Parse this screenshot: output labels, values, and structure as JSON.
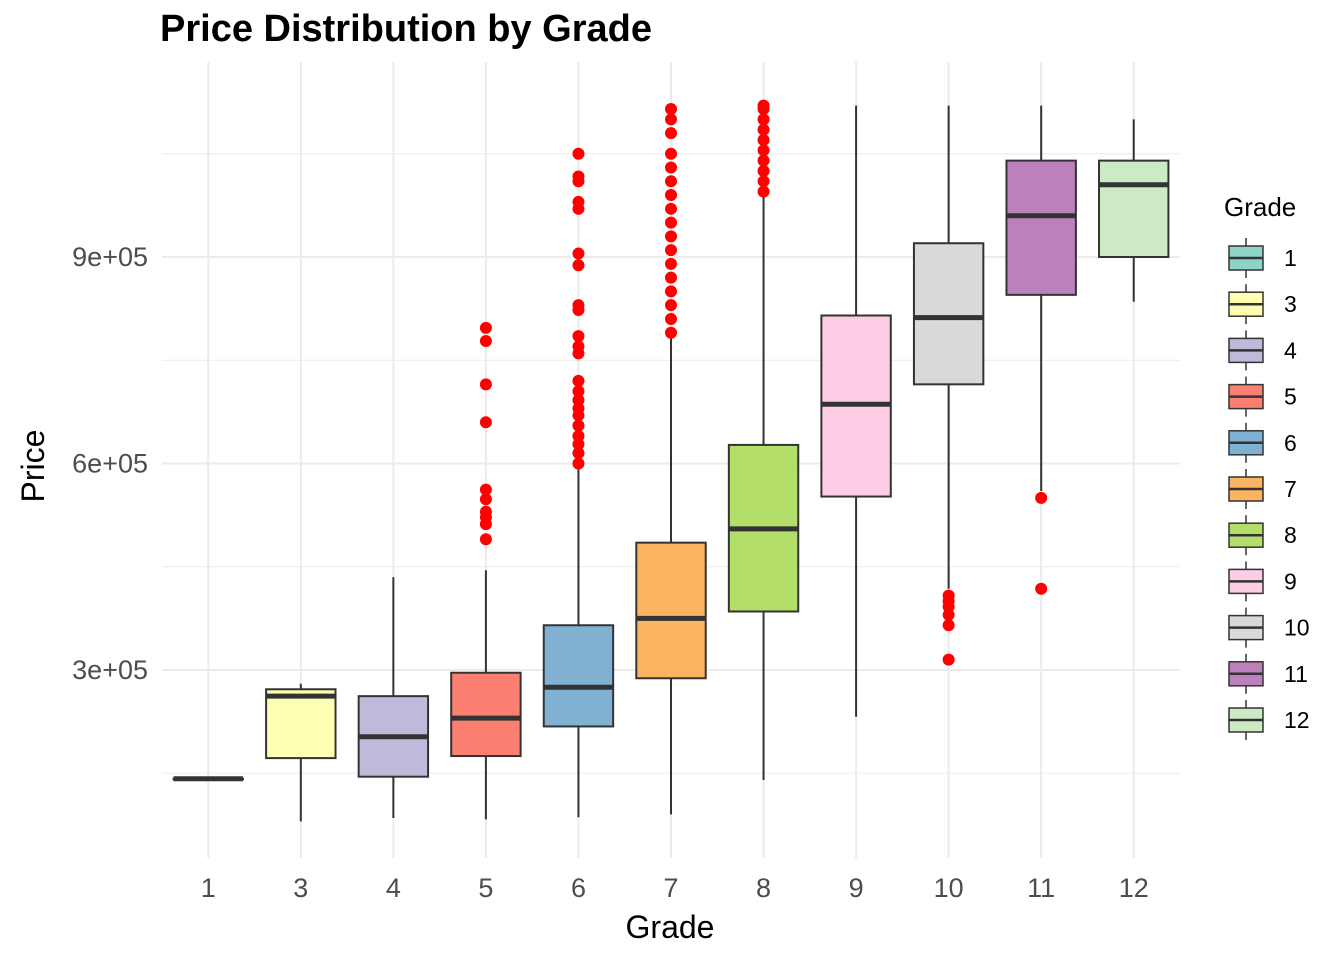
{
  "chart_data": {
    "type": "boxplot",
    "title": "Price Distribution by Grade",
    "xlabel": "Grade",
    "ylabel": "Price",
    "y_ticks": [
      {
        "value": 300000,
        "label": "3e+05"
      },
      {
        "value": 600000,
        "label": "6e+05"
      },
      {
        "value": 900000,
        "label": "9e+05"
      }
    ],
    "ylim": [
      60000,
      1140000
    ],
    "grid": true,
    "legend": {
      "title": "Grade",
      "placement": "right"
    },
    "outlier_color": "#FF0000",
    "boxes": [
      {
        "grade": "1",
        "color": "#8DD3C7",
        "min": 142000,
        "q1": 142000,
        "median": 142000,
        "q3": 142000,
        "max": 142000,
        "outliers": []
      },
      {
        "grade": "3",
        "color": "#FFFFB3",
        "min": 80000,
        "q1": 172000,
        "median": 262000,
        "q3": 272000,
        "max": 280000,
        "outliers": []
      },
      {
        "grade": "4",
        "color": "#BEBADA",
        "min": 85000,
        "q1": 145000,
        "median": 203000,
        "q3": 262000,
        "max": 435000,
        "outliers": []
      },
      {
        "grade": "5",
        "color": "#FB8072",
        "min": 83000,
        "q1": 175000,
        "median": 230000,
        "q3": 296000,
        "max": 445000,
        "outliers": [
          490000,
          512000,
          522000,
          530000,
          548000,
          562000,
          660000,
          715000,
          778000,
          797000
        ]
      },
      {
        "grade": "6",
        "color": "#80B1D3",
        "min": 86000,
        "q1": 218000,
        "median": 275000,
        "q3": 365000,
        "max": 595000,
        "outliers": [
          600000,
          615000,
          628000,
          640000,
          655000,
          670000,
          680000,
          692000,
          705000,
          720000,
          760000,
          770000,
          785000,
          823000,
          830000,
          888000,
          905000,
          970000,
          980000,
          1010000,
          1017000,
          1050000
        ]
      },
      {
        "grade": "7",
        "color": "#FDB462",
        "min": 90000,
        "q1": 288000,
        "median": 375000,
        "q3": 485000,
        "max": 785000,
        "outliers": [
          790000,
          810000,
          830000,
          850000,
          870000,
          890000,
          910000,
          930000,
          950000,
          970000,
          990000,
          1010000,
          1030000,
          1050000,
          1080000,
          1100000,
          1115000
        ]
      },
      {
        "grade": "8",
        "color": "#B3DE69",
        "min": 140000,
        "q1": 385000,
        "median": 505000,
        "q3": 627000,
        "max": 990000,
        "outliers": [
          995000,
          1010000,
          1025000,
          1040000,
          1055000,
          1070000,
          1085000,
          1100000,
          1115000,
          1120000
        ]
      },
      {
        "grade": "9",
        "color": "#FCCDE5",
        "min": 232000,
        "q1": 552000,
        "median": 686000,
        "q3": 815000,
        "max": 1120000,
        "outliers": []
      },
      {
        "grade": "10",
        "color": "#D9D9D9",
        "min": 418000,
        "q1": 715000,
        "median": 812000,
        "q3": 920000,
        "max": 1120000,
        "outliers": [
          315000,
          365000,
          380000,
          392000,
          400000,
          408000
        ]
      },
      {
        "grade": "11",
        "color": "#BC80BD",
        "min": 560000,
        "q1": 845000,
        "median": 960000,
        "q3": 1040000,
        "max": 1120000,
        "outliers": [
          418000,
          550000
        ]
      },
      {
        "grade": "12",
        "color": "#CCEBC5",
        "min": 835000,
        "q1": 900000,
        "median": 1005000,
        "q3": 1040000,
        "max": 1100000,
        "outliers": []
      }
    ]
  }
}
